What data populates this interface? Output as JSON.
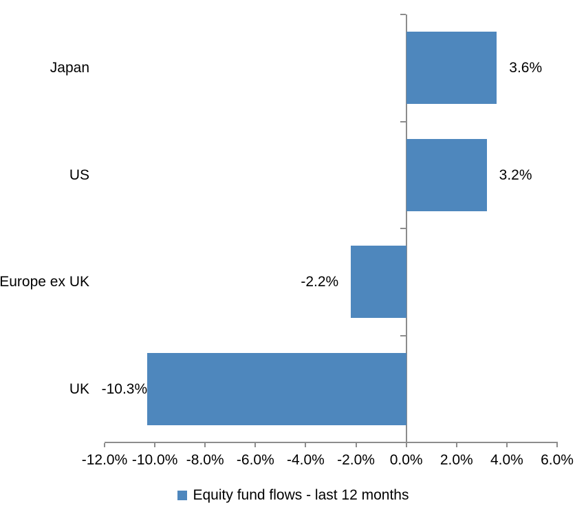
{
  "chart_data": {
    "type": "bar",
    "orientation": "horizontal",
    "categories": [
      "Japan",
      "US",
      "Europe ex UK",
      "UK"
    ],
    "values": [
      3.6,
      3.2,
      -2.2,
      -10.3
    ],
    "value_labels": [
      "3.6%",
      "3.2%",
      "-2.2%",
      "-10.3%"
    ],
    "series": [
      {
        "name": "Equity fund flows - last 12 months",
        "values": [
          3.6,
          3.2,
          -2.2,
          -10.3
        ]
      }
    ],
    "title": "",
    "xlabel": "",
    "ylabel": "",
    "xlim": [
      -12,
      6
    ],
    "xticks": [
      -12,
      -10,
      -8,
      -6,
      -4,
      -2,
      0,
      2,
      4,
      6
    ],
    "xtick_labels": [
      "-12.0%",
      "-10.0%",
      "-8.0%",
      "-6.0%",
      "-4.0%",
      "-2.0%",
      "0.0%",
      "2.0%",
      "4.0%",
      "6.0%"
    ],
    "grid": false,
    "legend_position": "bottom",
    "bar_color": "#4E87BD",
    "axis_color": "#8C8C8C",
    "text_color": "#000000"
  },
  "legend": {
    "label": "Equity fund flows - last 12 months",
    "marker_color": "#4E87BD"
  }
}
